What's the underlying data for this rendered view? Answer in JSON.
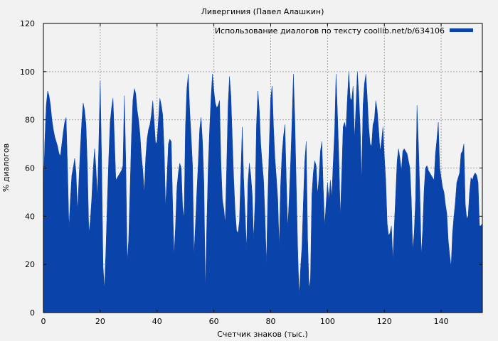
{
  "chart_data": {
    "type": "area",
    "title": "Ливергиния (Павел Алашкин)",
    "xlabel": "Счетчик знаков (тыс.)",
    "ylabel": "% диалогов",
    "xlim": [
      0,
      154.5
    ],
    "ylim": [
      0,
      120
    ],
    "xticks": [
      0,
      20,
      40,
      60,
      80,
      100,
      120,
      140
    ],
    "yticks": [
      0,
      20,
      40,
      60,
      80,
      100,
      120
    ],
    "grid": true,
    "legend_position": "top-right",
    "series": [
      {
        "name": "Использование диалогов по тексту coollib.net/b/634106",
        "color": "#0a44ab",
        "x": [
          0,
          0.5,
          1,
          1.5,
          2,
          2.5,
          3,
          3.5,
          4,
          4.5,
          5,
          5.5,
          6,
          6.5,
          7,
          7.5,
          8,
          8.5,
          9,
          9.5,
          10,
          10.5,
          11,
          11.5,
          12,
          12.5,
          13,
          13.5,
          14,
          14.5,
          15,
          15.5,
          16,
          16.5,
          17,
          17.5,
          18,
          18.5,
          19,
          19.5,
          20,
          20.5,
          21,
          21.5,
          22,
          22.5,
          23,
          23.5,
          24,
          24.5,
          25,
          25.5,
          26,
          26.5,
          27,
          27.5,
          28,
          28.5,
          29,
          29.5,
          30,
          30.5,
          31,
          31.5,
          32,
          32.5,
          33,
          33.5,
          34,
          34.5,
          35,
          35.5,
          36,
          36.5,
          37,
          37.5,
          38,
          38.5,
          39,
          39.5,
          40,
          40.5,
          41,
          41.5,
          42,
          42.5,
          43,
          43.5,
          44,
          44.5,
          45,
          45.5,
          46,
          46.5,
          47,
          47.5,
          48,
          48.5,
          49,
          49.5,
          50,
          50.5,
          51,
          51.5,
          52,
          52.5,
          53,
          53.5,
          54,
          54.5,
          55,
          55.5,
          56,
          56.5,
          57,
          57.5,
          58,
          58.5,
          59,
          59.5,
          60,
          60.5,
          61,
          61.5,
          62,
          62.5,
          63,
          63.5,
          64,
          64.5,
          65,
          65.5,
          66,
          66.5,
          67,
          67.5,
          68,
          68.5,
          69,
          69.5,
          70,
          70.5,
          71,
          71.5,
          72,
          72.5,
          73,
          73.5,
          74,
          74.5,
          75,
          75.5,
          76,
          76.5,
          77,
          77.5,
          78,
          78.5,
          79,
          79.5,
          80,
          80.5,
          81,
          81.5,
          82,
          82.5,
          83,
          83.5,
          84,
          84.5,
          85,
          85.5,
          86,
          86.5,
          87,
          87.5,
          88,
          88.5,
          89,
          89.5,
          90,
          90.5,
          91,
          91.5,
          92,
          92.5,
          93,
          93.5,
          94,
          94.5,
          95,
          95.5,
          96,
          96.5,
          97,
          97.5,
          98,
          98.5,
          99,
          99.5,
          100,
          100.5,
          101,
          101.5,
          102,
          102.5,
          103,
          103.5,
          104,
          104.5,
          105,
          105.5,
          106,
          106.5,
          107,
          107.5,
          108,
          108.5,
          109,
          109.5,
          110,
          110.5,
          111,
          111.5,
          112,
          112.5,
          113,
          113.5,
          114,
          114.5,
          115,
          115.5,
          116,
          116.5,
          117,
          117.5,
          118,
          118.5,
          119,
          119.5,
          120,
          120.5,
          121,
          121.5,
          122,
          122.5,
          123,
          123.5,
          124,
          124.5,
          125,
          125.5,
          126,
          126.5,
          127,
          127.5,
          128,
          128.5,
          129,
          129.5,
          130,
          130.5,
          131,
          131.5,
          132,
          132.5,
          133,
          133.5,
          134,
          134.5,
          135,
          135.5,
          136,
          136.5,
          137,
          137.5,
          138,
          138.5,
          139,
          139.5,
          140,
          140.5,
          141,
          141.5,
          142,
          142.5,
          143,
          143.5,
          144,
          144.5,
          145,
          145.5,
          146,
          146.5,
          147,
          147.5,
          148,
          148.5,
          149,
          149.5,
          150,
          150.5,
          151,
          151.5,
          152,
          152.5,
          153,
          153.5,
          154,
          154.5
        ],
        "values": [
          50,
          71,
          86,
          92,
          90,
          86,
          80,
          76,
          73,
          71,
          69,
          66,
          65,
          70,
          75,
          79,
          81,
          60,
          35,
          47,
          57,
          60,
          64,
          58,
          42,
          55,
          68,
          79,
          87,
          84,
          78,
          60,
          33,
          38,
          47,
          59,
          68,
          60,
          48,
          70,
          96,
          63,
          19,
          10,
          26,
          46,
          64,
          79,
          85,
          89,
          72,
          55,
          56,
          57,
          58,
          59,
          61,
          90,
          63,
          21,
          30,
          51,
          73,
          88,
          93,
          91,
          84,
          80,
          74,
          65,
          59,
          50,
          64,
          72,
          76,
          78,
          82,
          88,
          79,
          70,
          71,
          80,
          89,
          86,
          82,
          68,
          44,
          56,
          70,
          72,
          71,
          45,
          24,
          36,
          52,
          58,
          62,
          60,
          44,
          39,
          77,
          93,
          99,
          84,
          73,
          61,
          24,
          36,
          50,
          62,
          76,
          81,
          71,
          54,
          10,
          36,
          60,
          76,
          89,
          99,
          92,
          87,
          85,
          86,
          88,
          62,
          47,
          43,
          37,
          60,
          86,
          98,
          90,
          72,
          55,
          42,
          34,
          33,
          38,
          58,
          77,
          55,
          41,
          26,
          54,
          62,
          57,
          49,
          30,
          46,
          78,
          92,
          84,
          70,
          62,
          55,
          40,
          20,
          48,
          70,
          89,
          94,
          77,
          64,
          56,
          47,
          27,
          53,
          66,
          73,
          78,
          55,
          35,
          47,
          62,
          79,
          99,
          80,
          53,
          27,
          7,
          18,
          27,
          46,
          63,
          71,
          31,
          10,
          14,
          49,
          58,
          63,
          61,
          49,
          56,
          67,
          71,
          52,
          36,
          45,
          54,
          47,
          55,
          48,
          62,
          75,
          99,
          83,
          64,
          40,
          57,
          77,
          79,
          76,
          89,
          100,
          89,
          88,
          94,
          72,
          85,
          100,
          91,
          77,
          55,
          86,
          95,
          99,
          89,
          77,
          70,
          69,
          78,
          80,
          88,
          84,
          76,
          67,
          71,
          77,
          65,
          55,
          37,
          32,
          33,
          36,
          22,
          36,
          49,
          63,
          68,
          64,
          59,
          67,
          68,
          67,
          66,
          63,
          60,
          47,
          26,
          33,
          47,
          86,
          70,
          50,
          24,
          34,
          51,
          60,
          61,
          59,
          58,
          57,
          56,
          55,
          66,
          72,
          79,
          60,
          56,
          52,
          50,
          45,
          41,
          30,
          24,
          19,
          33,
          40,
          46,
          54,
          56,
          58,
          66,
          67,
          70,
          45,
          39,
          40,
          50,
          56,
          55,
          57,
          58,
          57,
          54,
          36,
          36,
          37
        ]
      }
    ]
  }
}
